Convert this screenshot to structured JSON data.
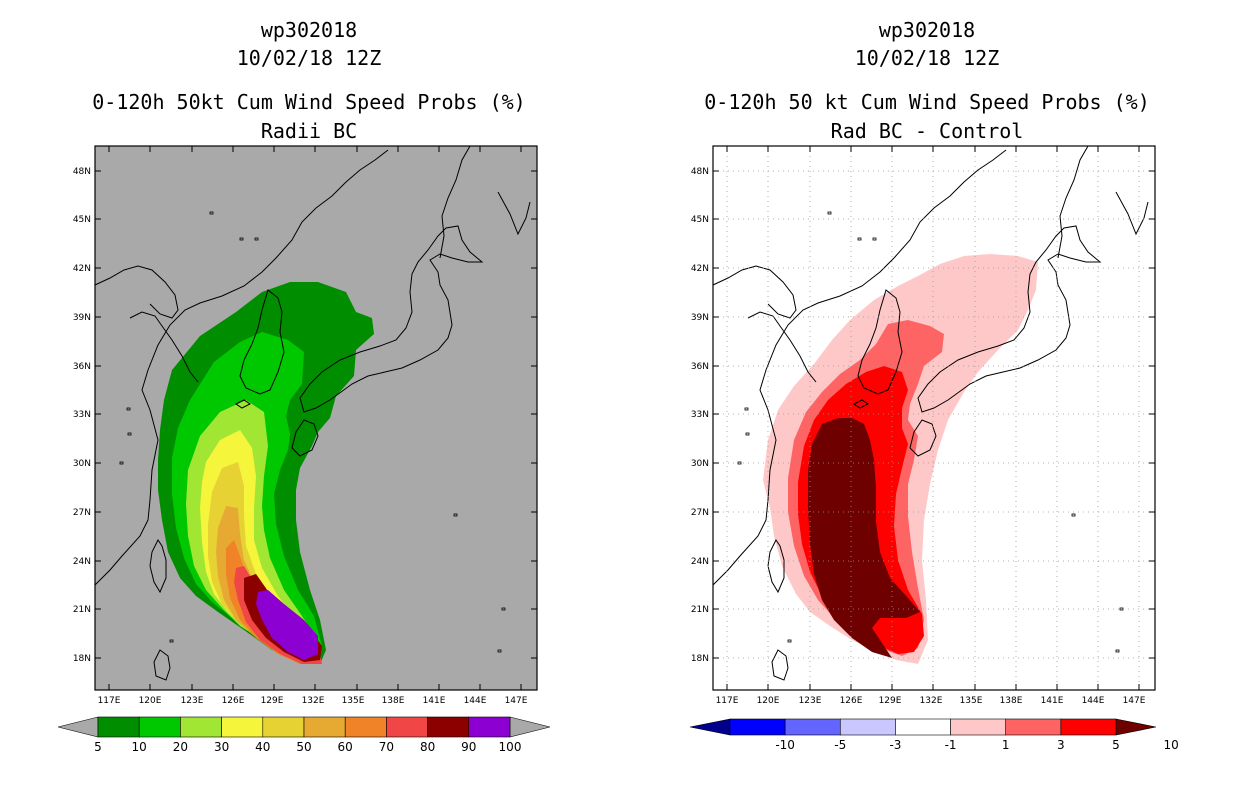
{
  "panels": [
    {
      "storm": "wp302018",
      "date": "10/02/18 12Z",
      "title": "0-120h 50kt Cum Wind Speed Probs (%)",
      "subtitle": "Radii BC",
      "map_background": "#a9a9a9",
      "colorbar": {
        "labels": [
          "5",
          "10",
          "20",
          "30",
          "40",
          "50",
          "60",
          "70",
          "80",
          "90",
          "100"
        ],
        "colors": [
          "#008e00",
          "#00c800",
          "#a0e632",
          "#f5f53c",
          "#e6d232",
          "#e6aa32",
          "#f08228",
          "#f04646",
          "#8c0000",
          "#8c00d2"
        ],
        "ext_low": "#a9a9a9",
        "ext_high": "#a9a9a9"
      }
    },
    {
      "storm": "wp302018",
      "date": "10/02/18 12Z",
      "title": "0-120h 50 kt Cum Wind Speed Probs (%)",
      "subtitle": "Rad BC - Control",
      "map_background": "#ffffff",
      "colorbar": {
        "labels": [
          "-10",
          "-5",
          "-3",
          "-1",
          "1",
          "3",
          "5",
          "10"
        ],
        "colors": [
          "#0000ff",
          "#6464ff",
          "#c8c8ff",
          "#ffffff",
          "#ffc8c8",
          "#ff6464",
          "#ff0000"
        ],
        "ext_low": "#00008c",
        "ext_high": "#6e0000"
      }
    }
  ],
  "axes": {
    "lat_labels": [
      "48N",
      "45N",
      "42N",
      "39N",
      "36N",
      "33N",
      "30N",
      "27N",
      "24N",
      "21N",
      "18N"
    ],
    "lon_labels": [
      "117E",
      "120E",
      "123E",
      "126E",
      "129E",
      "132E",
      "135E",
      "138E",
      "141E",
      "144E",
      "147E"
    ]
  }
}
